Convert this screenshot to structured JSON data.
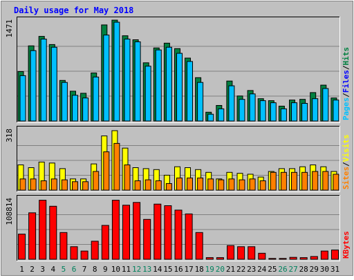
{
  "chart_data": {
    "title": "Daily usage for May 2018",
    "type": "bar",
    "categories": [
      "1",
      "2",
      "3",
      "4",
      "5",
      "6",
      "7",
      "8",
      "9",
      "10",
      "11",
      "12",
      "13",
      "14",
      "15",
      "16",
      "17",
      "18",
      "19",
      "20",
      "21",
      "22",
      "23",
      "24",
      "25",
      "26",
      "27",
      "28",
      "29",
      "30",
      "31"
    ],
    "weekend_days": [
      "5",
      "6",
      "12",
      "13",
      "19",
      "20",
      "26",
      "27"
    ],
    "colors": {
      "background": "#c0c0c0",
      "panel": "#c0c0c0",
      "title": "#0000ff",
      "hits": "#008040",
      "files": "#00c0ff",
      "visits": "#ffff00",
      "sites": "#ff8000",
      "kbytes": "#ff0000",
      "weekday_label": "#000000",
      "weekend_label": "#00805c"
    },
    "panels": [
      {
        "id": "hits-files",
        "ymax_label": "1471",
        "ymax": 1471,
        "legend": [
          {
            "text": "Pages",
            "color": "#00c0ff"
          },
          {
            "text": "/",
            "color": "#000000"
          },
          {
            "text": "Files",
            "color": "#0000ff"
          },
          {
            "text": "/",
            "color": "#000000"
          },
          {
            "text": "Hits",
            "color": "#008040"
          }
        ],
        "series": [
          {
            "name": "Hits",
            "color": "#008040",
            "values": [
              730,
              1110,
              1250,
              1130,
              600,
              440,
              410,
              710,
              1420,
              1490,
              1260,
              1200,
              860,
              1080,
              1150,
              1070,
              930,
              640,
              130,
              230,
              590,
              370,
              450,
              330,
              300,
              220,
              310,
              320,
              420,
              530,
              340
            ]
          },
          {
            "name": "Files",
            "color": "#00c0ff",
            "values": [
              670,
              1040,
              1210,
              1090,
              570,
              380,
              340,
              650,
              1270,
              1460,
              1210,
              1170,
              810,
              1050,
              1090,
              1000,
              880,
              570,
              100,
              180,
              520,
              320,
              400,
              300,
              270,
              180,
              270,
              260,
              330,
              480,
              310
            ]
          }
        ]
      },
      {
        "id": "visits-sites",
        "ymax_label": "318",
        "ymax": 318,
        "legend": [
          {
            "text": "Sites",
            "color": "#ff8000"
          },
          {
            "text": "/",
            "color": "#000000"
          },
          {
            "text": "Visits",
            "color": "#ffff00"
          }
        ],
        "series": [
          {
            "name": "Visits",
            "color": "#ffff00",
            "values": [
              135,
              120,
              150,
              145,
              115,
              60,
              60,
              140,
              290,
              318,
              225,
              120,
              115,
              110,
              80,
              125,
              120,
              110,
              95,
              60,
              95,
              90,
              85,
              70,
              100,
              115,
              115,
              125,
              135,
              125,
              100
            ]
          },
          {
            "name": "Sites",
            "color": "#ff8000",
            "values": [
              60,
              60,
              50,
              60,
              55,
              45,
              45,
              100,
              205,
              250,
              135,
              50,
              55,
              50,
              35,
              65,
              65,
              65,
              60,
              55,
              60,
              55,
              60,
              50,
              95,
              95,
              95,
              95,
              100,
              100,
              85
            ]
          }
        ]
      },
      {
        "id": "kbytes",
        "ymax_label": "108814",
        "ymax": 108814,
        "legend": [
          {
            "text": "KBytes",
            "color": "#ff0000"
          }
        ],
        "series": [
          {
            "name": "KBytes",
            "color": "#ff0000",
            "values": [
              46000,
              85000,
              108000,
              97000,
              49000,
              23000,
              15000,
              33000,
              62000,
              108000,
              99000,
              104000,
              73000,
              101000,
              98000,
              90000,
              83000,
              49000,
              3000,
              3000,
              25000,
              23000,
              23000,
              11000,
              1500,
              1500,
              3500,
              3000,
              5000,
              15000,
              17000
            ]
          }
        ]
      }
    ]
  }
}
